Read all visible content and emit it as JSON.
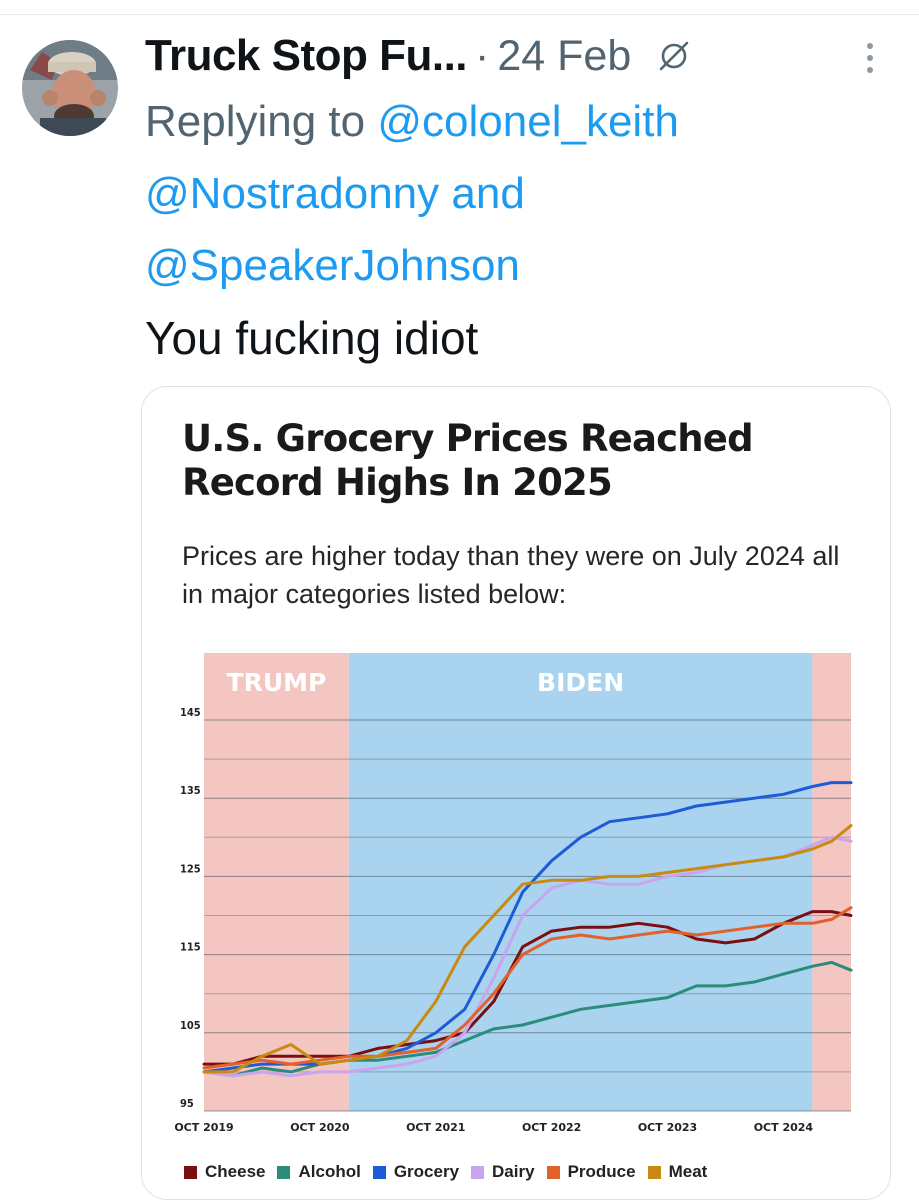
{
  "tweet": {
    "author_name": "Truck Stop Fu...",
    "separator": "·",
    "date": "24 Feb",
    "reply_prefix": "Replying to",
    "mentions": [
      "@colonel_keith",
      "@Nostradonny",
      "@SpeakerJohnson"
    ],
    "reply_joiner": "and",
    "text": "You fucking idiot"
  },
  "icons": {
    "globe": "globe-icon",
    "more": "more-vertical-icon",
    "avatar": "avatar"
  },
  "colors": {
    "mention": "#1d9bf0",
    "muted_text": "#536471",
    "trump_band": "#f4c6c2",
    "biden_band": "#a9d3ee"
  },
  "chart_data": {
    "type": "line",
    "title": "U.S. Grocery Prices Reached Record Highs In 2025",
    "subtitle": "Prices are higher today than they were on July 2024 all in major categories listed below:",
    "ylim": [
      95,
      145
    ],
    "yticks": [
      "145",
      "135",
      "125",
      "115",
      "105",
      "95"
    ],
    "ytick_values": [
      145,
      135,
      125,
      115,
      105,
      95
    ],
    "xlim": [
      "2019-10",
      "2025-05"
    ],
    "xticks": [
      "OCT 2019",
      "OCT 2020",
      "OCT 2021",
      "OCT 2022",
      "OCT 2023",
      "OCT 2024"
    ],
    "xtick_values": [
      "2019-10",
      "2020-10",
      "2021-10",
      "2022-10",
      "2023-10",
      "2024-10"
    ],
    "grid": true,
    "legend_position": "bottom",
    "bands": [
      {
        "label": "TRUMP",
        "from": "2019-10",
        "to": "2021-01",
        "color": "#f4c6c2"
      },
      {
        "label": "BIDEN",
        "from": "2021-01",
        "to": "2025-01",
        "color": "#a9d3ee"
      },
      {
        "label": "",
        "from": "2025-01",
        "to": "2025-05",
        "color": "#f4c6c2"
      }
    ],
    "x": [
      "2019-10",
      "2020-01",
      "2020-04",
      "2020-07",
      "2020-10",
      "2021-01",
      "2021-04",
      "2021-07",
      "2021-10",
      "2022-01",
      "2022-04",
      "2022-07",
      "2022-10",
      "2023-01",
      "2023-04",
      "2023-07",
      "2023-10",
      "2024-01",
      "2024-04",
      "2024-07",
      "2024-10",
      "2025-01",
      "2025-03",
      "2025-05"
    ],
    "series": [
      {
        "name": "Cheese",
        "color": "#7a0f12",
        "values": [
          101,
          101,
          102,
          102,
          102,
          102,
          103,
          103.5,
          104,
          105,
          109,
          116,
          118,
          118.5,
          118.5,
          119,
          118.5,
          117,
          116.5,
          117,
          119,
          120.5,
          120.5,
          120
        ]
      },
      {
        "name": "Alcohol",
        "color": "#2b8c7b",
        "values": [
          100,
          99.5,
          100.5,
          100,
          101,
          101.5,
          101.5,
          102,
          102.5,
          104,
          105.5,
          106,
          107,
          108,
          108.5,
          109,
          109.5,
          111,
          111,
          111.5,
          112.5,
          113.5,
          114,
          113
        ]
      },
      {
        "name": "Grocery",
        "color": "#1e5bd6",
        "values": [
          100,
          100.5,
          101,
          101,
          101,
          101.5,
          102,
          103,
          105,
          108,
          115,
          123,
          127,
          130,
          132,
          132.5,
          133,
          134,
          134.5,
          135,
          135.5,
          136.5,
          137,
          137
        ]
      },
      {
        "name": "Dairy",
        "color": "#c9a5ef",
        "values": [
          100,
          99.5,
          100,
          99.5,
          100,
          100,
          100.5,
          101,
          102,
          105,
          112,
          120,
          123.5,
          124.5,
          124,
          124,
          125,
          125.5,
          126.5,
          127,
          127.5,
          129,
          130,
          129.5
        ]
      },
      {
        "name": "Produce",
        "color": "#e2602a",
        "values": [
          100.5,
          101,
          101.5,
          101,
          101.5,
          102,
          102,
          102.5,
          103,
          106,
          110,
          115,
          117,
          117.5,
          117,
          117.5,
          118,
          117.5,
          118,
          118.5,
          119,
          119,
          119.5,
          121
        ]
      },
      {
        "name": "Meat",
        "color": "#c98a12",
        "values": [
          100,
          100,
          102,
          103.5,
          101,
          101.5,
          102,
          104,
          109,
          116,
          120,
          124,
          124.5,
          124.5,
          125,
          125,
          125.5,
          126,
          126.5,
          127,
          127.5,
          128.5,
          129.5,
          131.5
        ]
      }
    ]
  }
}
